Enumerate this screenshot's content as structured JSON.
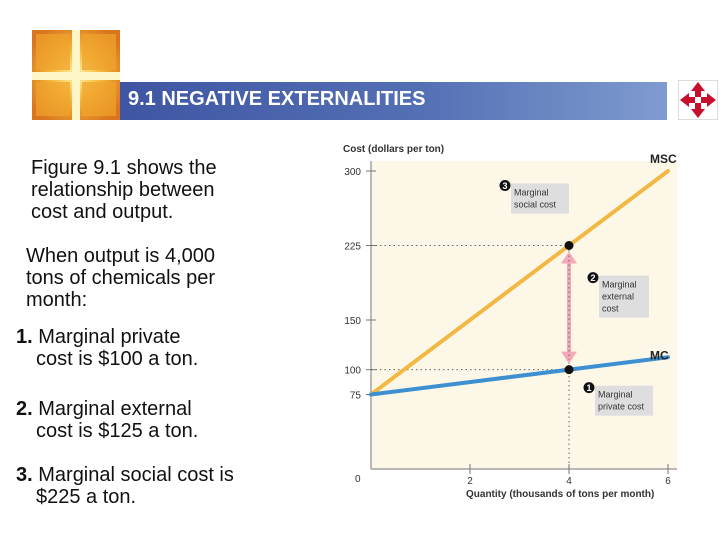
{
  "slide": {
    "title": "9.1 NEGATIVE EXTERNALITIES",
    "paragraphs": [
      {
        "lines": [
          "Figure 9.1 shows the",
          "relationship between",
          "cost and output."
        ]
      },
      {
        "lines": [
          "When output is 4,000",
          "tons of chemicals per",
          "month:"
        ]
      }
    ],
    "items": [
      {
        "num": "1.",
        "line1": " Marginal private",
        "line2": "cost is $100 a ton."
      },
      {
        "num": "2.",
        "line1": " Marginal external",
        "line2": "cost is $125 a ton."
      },
      {
        "num": "3.",
        "line1": " Marginal social cost is",
        "line2": "$225 a ton."
      }
    ]
  },
  "colors": {
    "title_bar": "#4a63ad",
    "msc_line": "#f1b944",
    "mc_line": "#3c8fd0",
    "arrow": "#f3a9b8",
    "plot_bg": "#fdf7e8",
    "callout_bg": "#dedede"
  },
  "icons": [
    "logo-icon",
    "navigation-arrows-icon"
  ],
  "chart_data": {
    "type": "line",
    "ylabel": "Cost (dollars per ton)",
    "xlabel": "Quantity (thousands of tons per month)",
    "xlim": [
      0,
      6
    ],
    "ylim": [
      0,
      300
    ],
    "x_ticks": [
      "2",
      "4",
      "6"
    ],
    "y_ticks": [
      "300",
      "225",
      "150",
      "100",
      "75"
    ],
    "origin_label": "0",
    "series": [
      {
        "name": "MSC",
        "x": [
          0,
          6
        ],
        "y": [
          75,
          300
        ]
      },
      {
        "name": "MC",
        "x": [
          0,
          6
        ],
        "y": [
          75,
          112.5
        ]
      }
    ],
    "markers": [
      {
        "num": "1",
        "x": 4,
        "y": 100,
        "label_lines": [
          "Marginal",
          "private cost"
        ]
      },
      {
        "num": "2",
        "x": 4,
        "y": 162.5,
        "label_lines": [
          "Marginal",
          "external",
          "cost"
        ]
      },
      {
        "num": "3",
        "x": 4,
        "y": 225,
        "label_lines": [
          "Marginal",
          "social cost"
        ]
      }
    ],
    "grid": false
  }
}
